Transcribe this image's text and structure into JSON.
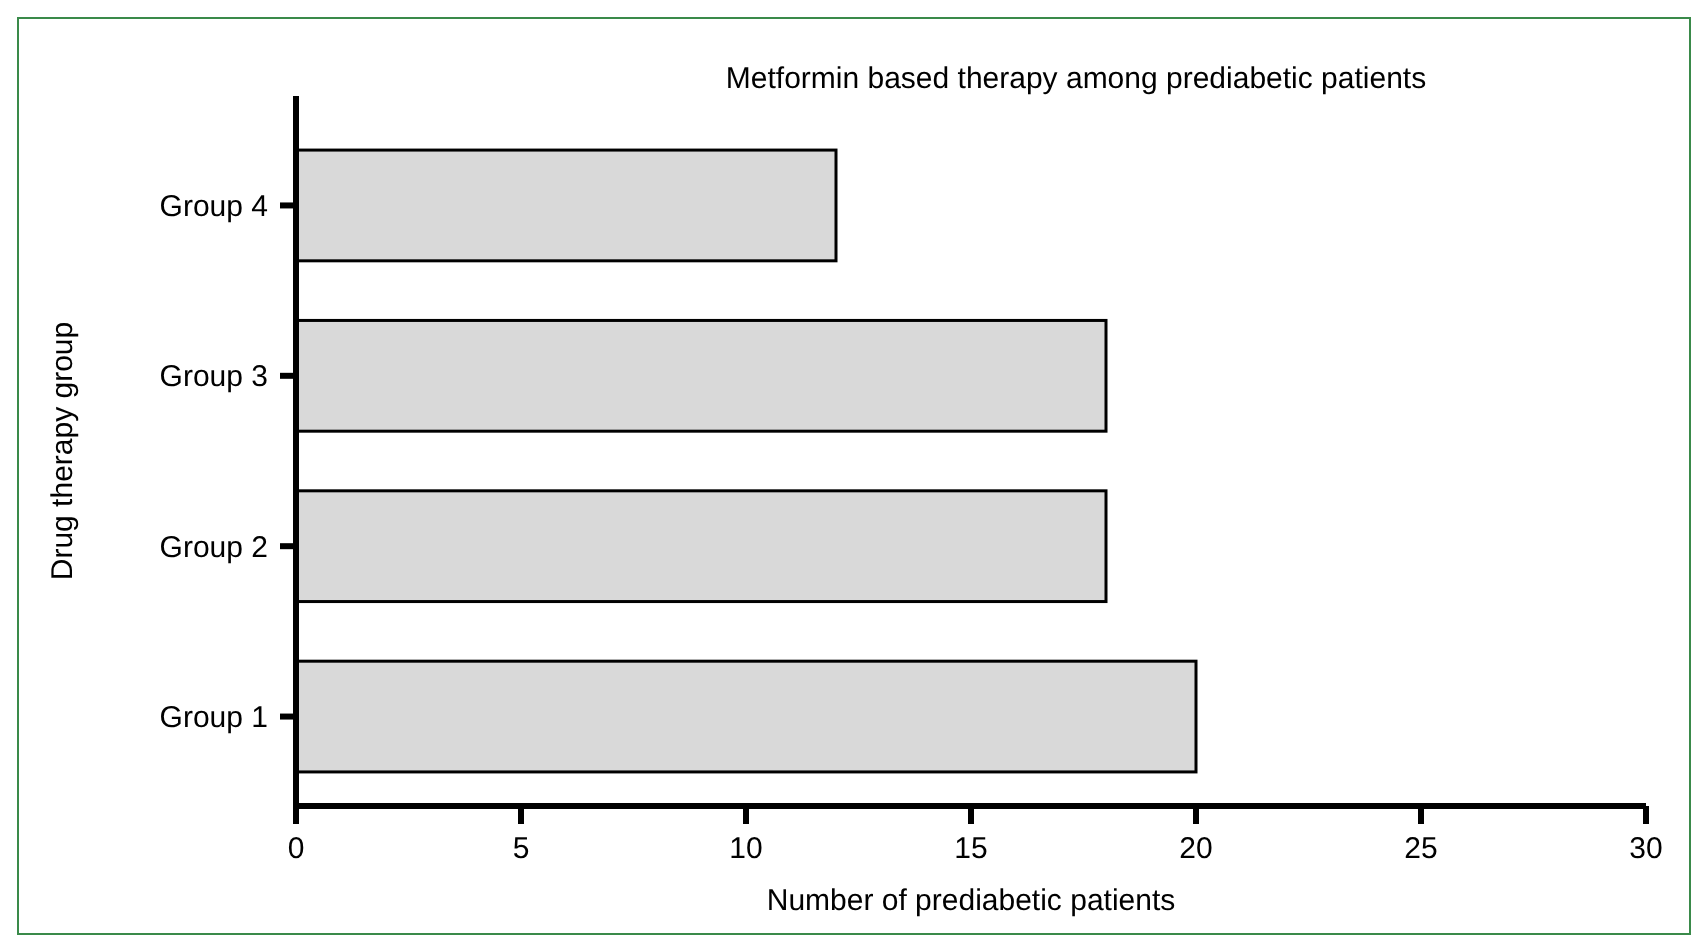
{
  "chart_data": {
    "type": "bar",
    "orientation": "horizontal",
    "title": "Metformin based therapy among prediabetic patients",
    "xlabel": "Number of prediabetic patients",
    "ylabel": "Drug therapy group",
    "categories": [
      "Group 4",
      "Group 3",
      "Group 2",
      "Group 1"
    ],
    "values": [
      12,
      18,
      18,
      20
    ],
    "color": "#d9d9d9",
    "xlim": [
      0,
      30
    ],
    "xticks": [
      0,
      5,
      10,
      15,
      20,
      25,
      30
    ],
    "grid": false
  }
}
